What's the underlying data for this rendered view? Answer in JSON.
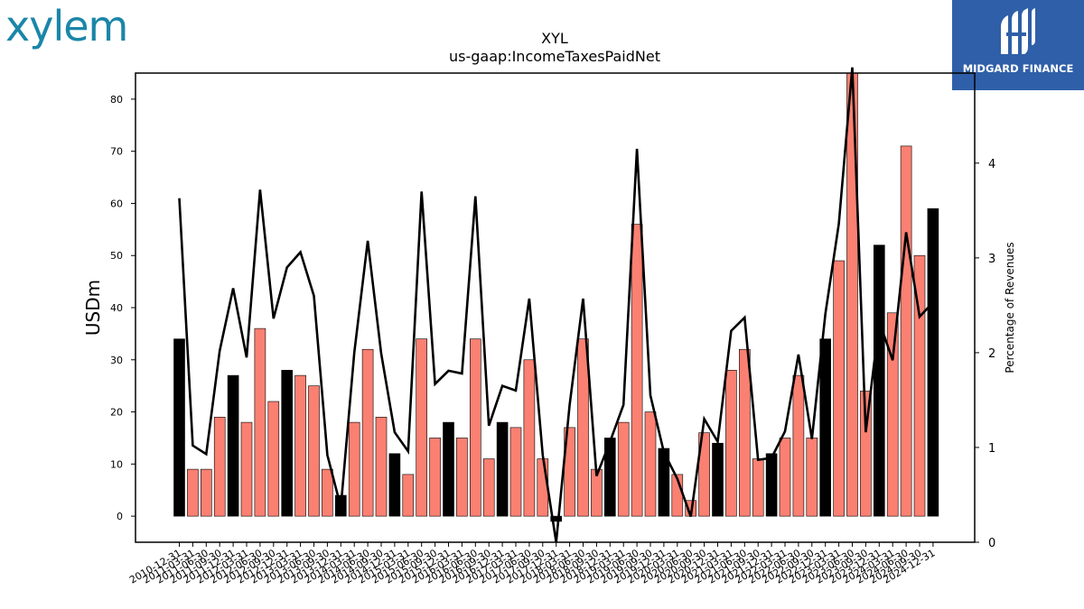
{
  "logos": {
    "left_text": "xylem",
    "right_text": "MIDGARD FINANCE",
    "colors": {
      "xylem": "#1a86a8",
      "midgard_bg": "#2f5fa8"
    }
  },
  "chart_data": {
    "type": "bar",
    "title": "XYL",
    "subtitle": "us-gaap:IncomeTaxesPaidNet",
    "ylabel": "USDm",
    "ylabel_right": "Percentage of Revenues",
    "ylim": [
      -5,
      85
    ],
    "ylim_right": [
      0,
      4.95
    ],
    "yticks": [
      0,
      10,
      20,
      30,
      40,
      50,
      60,
      70,
      80
    ],
    "yticks_right": [
      0,
      1,
      2,
      3,
      4
    ],
    "colors": {
      "annual": "#000000",
      "quarterly": "#fa8072",
      "line": "#000000"
    },
    "categories": [
      "2010-12-31",
      "2011-03-31",
      "2011-06-30",
      "2011-09-30",
      "2011-12-31",
      "2012-03-31",
      "2012-06-30",
      "2012-09-30",
      "2012-12-31",
      "2013-03-31",
      "2013-06-30",
      "2013-09-30",
      "2013-12-31",
      "2014-03-31",
      "2014-06-30",
      "2014-09-30",
      "2014-12-31",
      "2015-03-31",
      "2015-06-30",
      "2015-09-30",
      "2015-12-31",
      "2016-03-31",
      "2016-06-30",
      "2016-09-30",
      "2016-12-31",
      "2017-03-31",
      "2017-06-30",
      "2017-09-30",
      "2017-12-31",
      "2018-03-31",
      "2018-06-30",
      "2018-09-30",
      "2018-12-31",
      "2019-03-31",
      "2019-06-30",
      "2019-09-30",
      "2019-12-31",
      "2020-03-31",
      "2020-06-30",
      "2020-09-30",
      "2020-12-31",
      "2021-03-31",
      "2021-06-30",
      "2021-09-30",
      "2021-12-31",
      "2022-03-31",
      "2022-06-30",
      "2022-09-30",
      "2022-12-31",
      "2023-03-31",
      "2023-06-30",
      "2023-09-30",
      "2023-12-31",
      "2024-03-31",
      "2024-06-30",
      "2024-09-30",
      "2024-12-31"
    ],
    "series": [
      {
        "values": [
          34,
          9,
          9,
          19,
          27,
          18,
          36,
          22,
          28,
          27,
          25,
          9,
          4,
          18,
          32,
          19,
          12,
          8,
          34,
          15,
          18,
          15,
          34,
          11,
          18,
          17,
          30,
          11,
          -1,
          17,
          34,
          9,
          15,
          18,
          56,
          20,
          13,
          8,
          3,
          16,
          14,
          28,
          32,
          11,
          12,
          15,
          27,
          15,
          34,
          49,
          85,
          24,
          52,
          39,
          71,
          50,
          59
        ]
      },
      {
        "values": [
          3.63,
          1.02,
          0.93,
          2.02,
          2.68,
          1.95,
          3.72,
          2.36,
          2.9,
          3.06,
          2.6,
          0.92,
          0.37,
          2.0,
          3.18,
          1.99,
          1.16,
          0.96,
          3.7,
          1.67,
          1.81,
          1.78,
          3.65,
          1.23,
          1.65,
          1.6,
          2.57,
          0.92,
          0.0,
          1.45,
          2.57,
          0.7,
          1.06,
          1.45,
          4.15,
          1.55,
          0.95,
          0.67,
          0.27,
          1.3,
          1.06,
          2.23,
          2.37,
          0.87,
          0.89,
          1.17,
          1.98,
          1.09,
          2.41,
          3.36,
          5.01,
          1.16,
          2.33,
          1.92,
          3.27,
          2.38,
          2.53
        ]
      }
    ]
  }
}
